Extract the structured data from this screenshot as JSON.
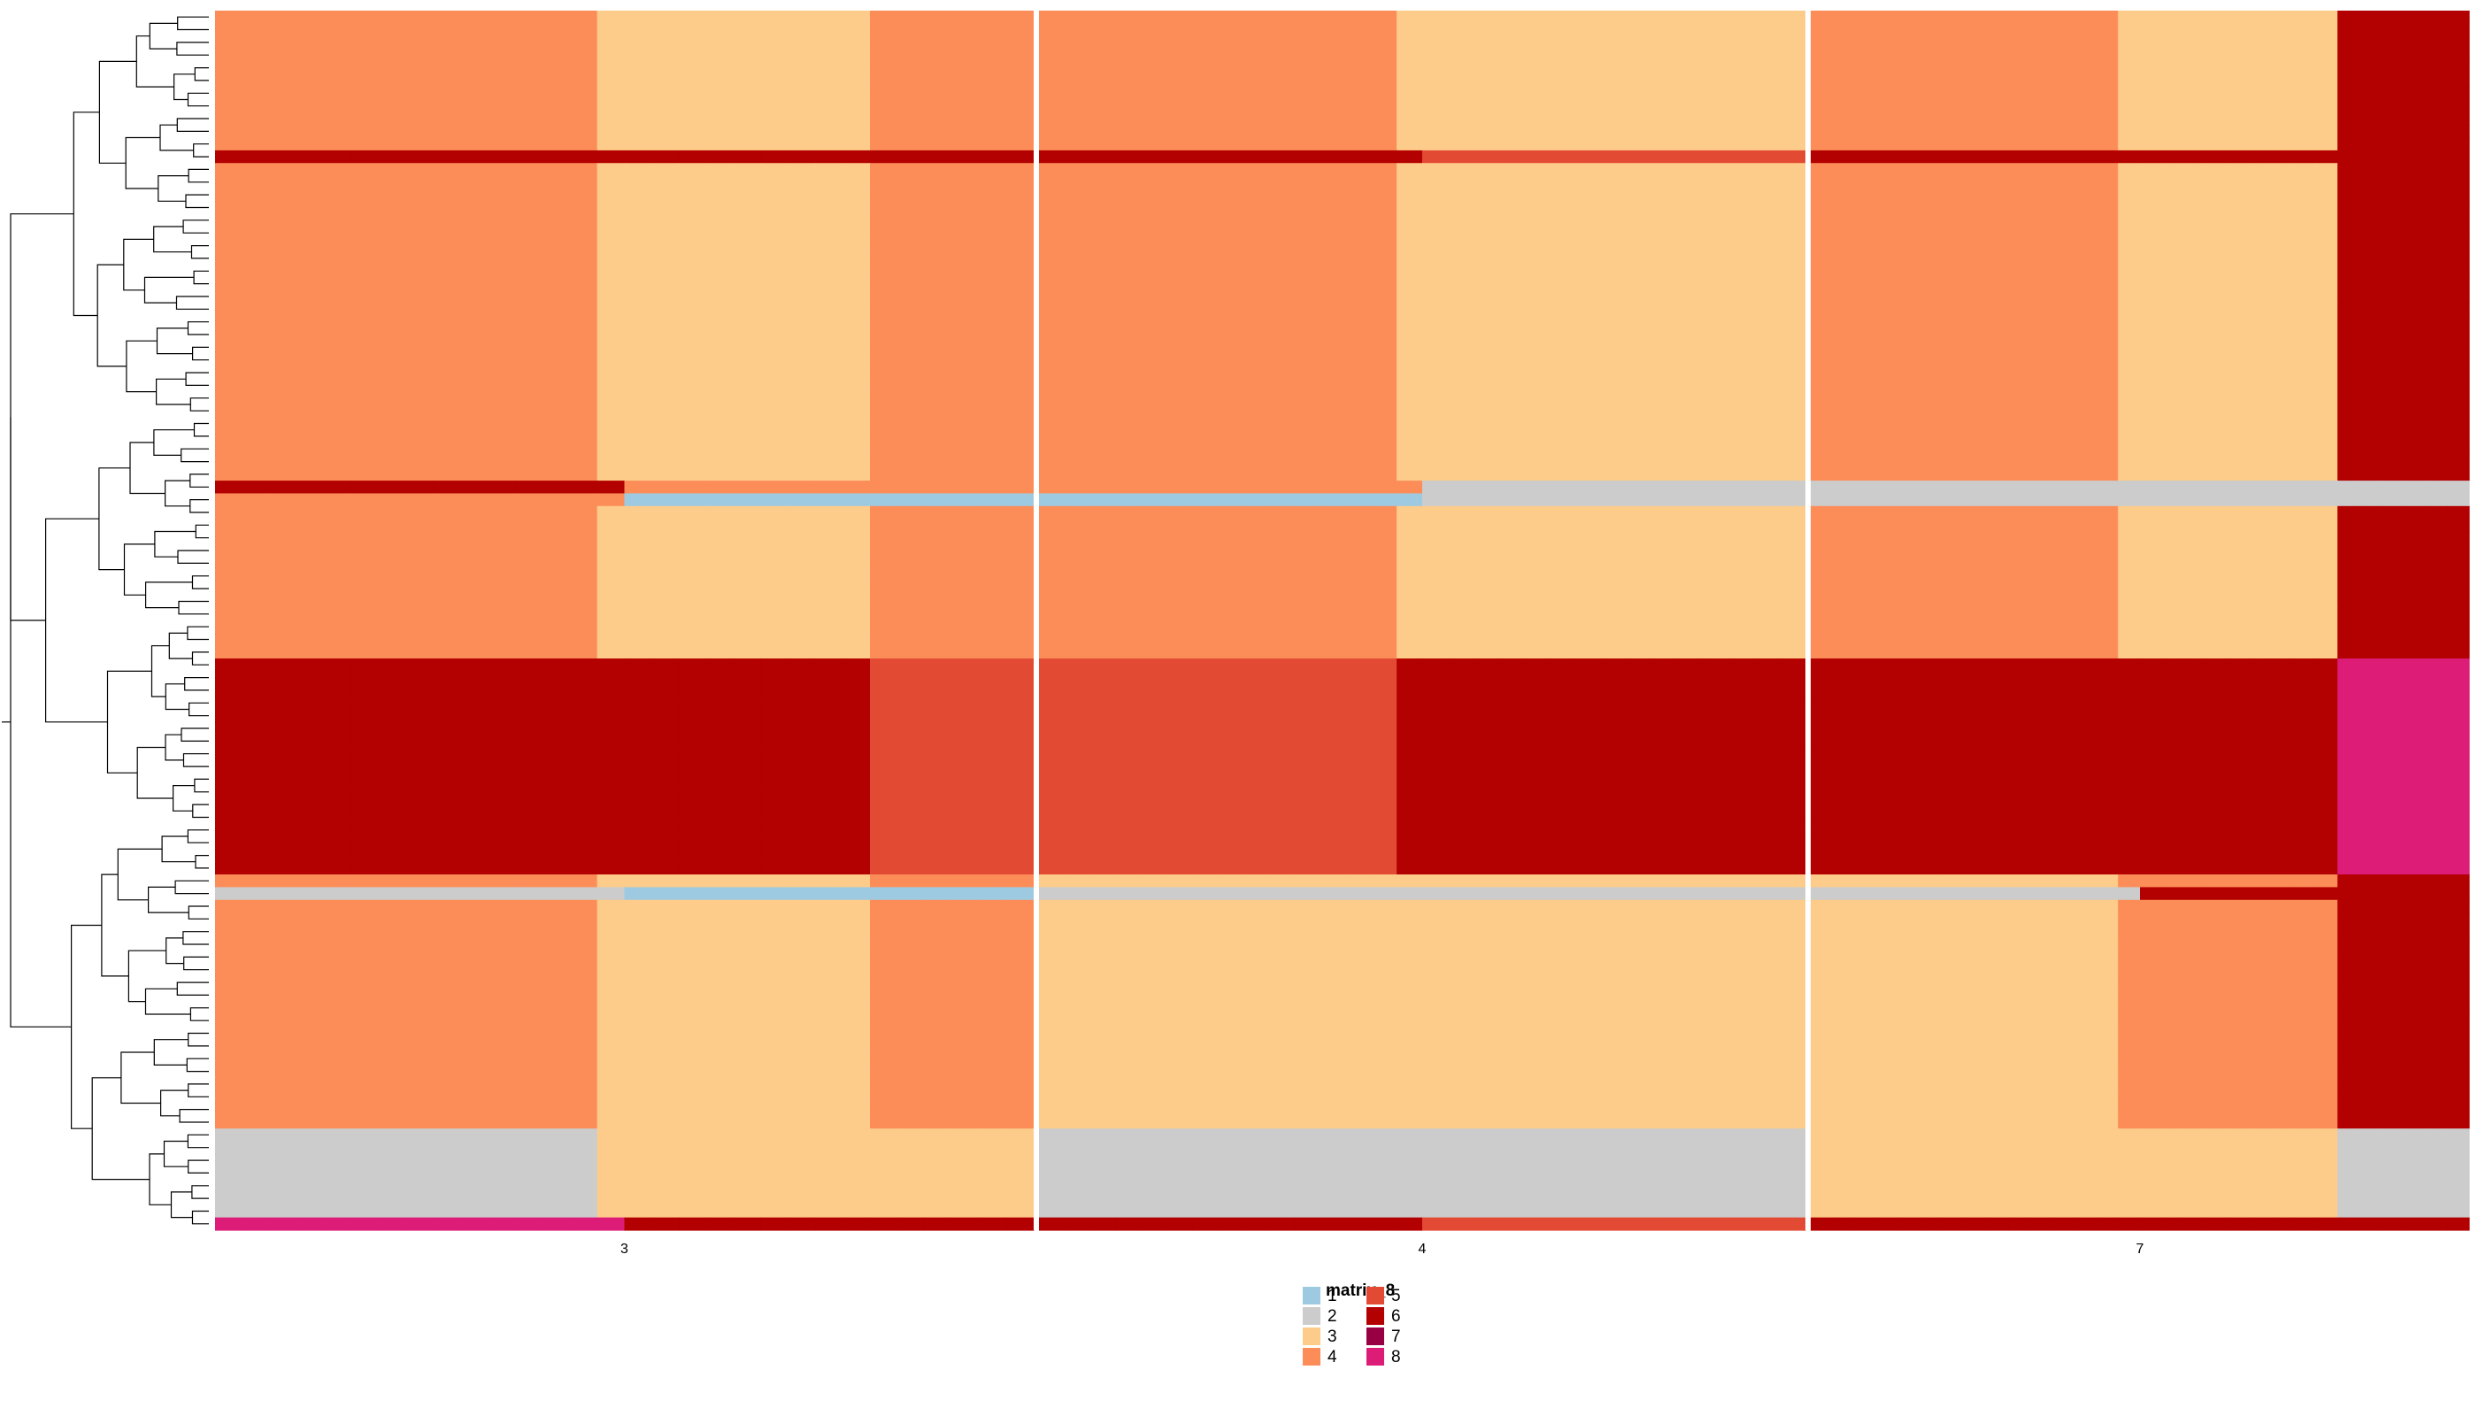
{
  "chart_data": {
    "type": "heatmap",
    "title": "",
    "xlabel": "",
    "ylabel": "",
    "column_groups": [
      {
        "label": "3",
        "columns": 30
      },
      {
        "label": "4",
        "columns": 30
      },
      {
        "label": "7",
        "columns": 30
      }
    ],
    "row_count": 96,
    "row_dendrogram": true,
    "grid": false,
    "legend": {
      "title": "matrix_8",
      "placement": "bottom-center",
      "entries": [
        {
          "label": "1",
          "color": "#9ecae1"
        },
        {
          "label": "2",
          "color": "#cccccc"
        },
        {
          "label": "3",
          "color": "#fdcc8a"
        },
        {
          "label": "4",
          "color": "#fc8d59"
        },
        {
          "label": "5",
          "color": "#e34a33"
        },
        {
          "label": "6",
          "color": "#b30000"
        },
        {
          "label": "7",
          "color": "#980043"
        },
        {
          "label": "8",
          "color": "#dd1c77"
        }
      ]
    },
    "row_bands": [
      {
        "rows": 51,
        "group_values": [
          [
            4,
            3,
            4
          ],
          [
            4,
            3,
            3
          ],
          [
            4,
            3,
            6
          ]
        ]
      },
      {
        "rows": 17,
        "group_values": [
          [
            6,
            6,
            5
          ],
          [
            5,
            6,
            6
          ],
          [
            6,
            6,
            8
          ]
        ]
      },
      {
        "rows": 20,
        "group_values": [
          [
            4,
            3,
            4
          ],
          [
            3,
            3,
            3
          ],
          [
            3,
            4,
            6
          ]
        ]
      },
      {
        "rows": 8,
        "group_values": [
          [
            2,
            3,
            3
          ],
          [
            2,
            2,
            2
          ],
          [
            3,
            3,
            2
          ]
        ]
      }
    ],
    "special_rows": [
      {
        "row": 11,
        "values": [
          6,
          6,
          6,
          5,
          6,
          6
        ]
      },
      {
        "row": 37,
        "values": [
          6,
          4,
          4,
          2,
          2,
          2
        ]
      },
      {
        "row": 38,
        "values": [
          4,
          1,
          1,
          2,
          2,
          2
        ]
      },
      {
        "row": 69,
        "values": [
          2,
          1,
          2,
          2,
          2,
          6
        ]
      },
      {
        "row": 95,
        "values": [
          8,
          6,
          6,
          5,
          6,
          6
        ]
      }
    ]
  }
}
